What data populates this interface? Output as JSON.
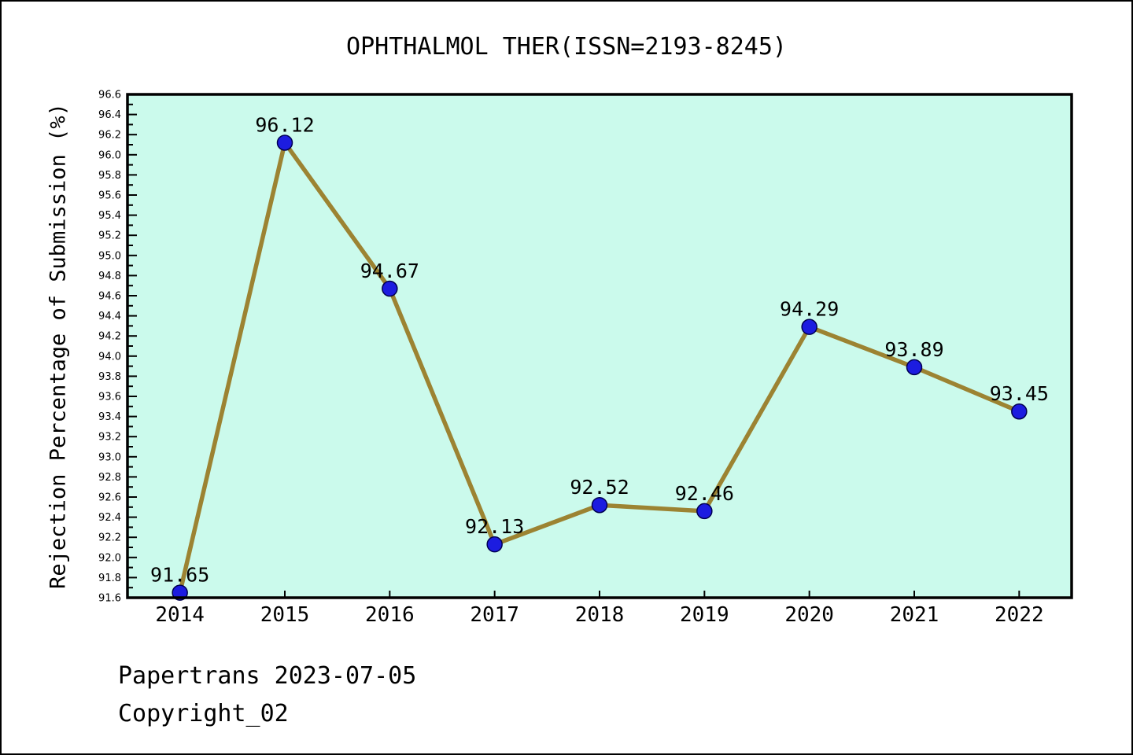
{
  "page": {
    "footer_line1": "Papertrans 2023-07-05",
    "footer_line2": "Copyright_02"
  },
  "chart_data": {
    "type": "line",
    "title": "OPHTHALMOL THER(ISSN=2193-8245)",
    "xlabel": "",
    "ylabel": "Rejection Percentage of Submission (%)",
    "x": [
      2014,
      2015,
      2016,
      2017,
      2018,
      2019,
      2020,
      2021,
      2022
    ],
    "values": [
      91.65,
      96.12,
      94.67,
      92.13,
      92.52,
      92.46,
      94.29,
      93.89,
      93.45
    ],
    "point_labels": [
      "91.65",
      "96.12",
      "94.67",
      "92.13",
      "92.52",
      "92.46",
      "94.29",
      "93.89",
      "93.45"
    ],
    "xlim": [
      2013.5,
      2022.5
    ],
    "ylim": [
      91.6,
      96.6
    ],
    "y_major_step": 0.2,
    "y_minor_step": 0.1,
    "grid": false,
    "legend": null,
    "colors": {
      "plot_bg": "#cbfaec",
      "line": "#9c8332",
      "marker_fill": "#1c1ce0",
      "marker_edge": "#000050",
      "frame": "#000000",
      "text": "#000000"
    }
  }
}
